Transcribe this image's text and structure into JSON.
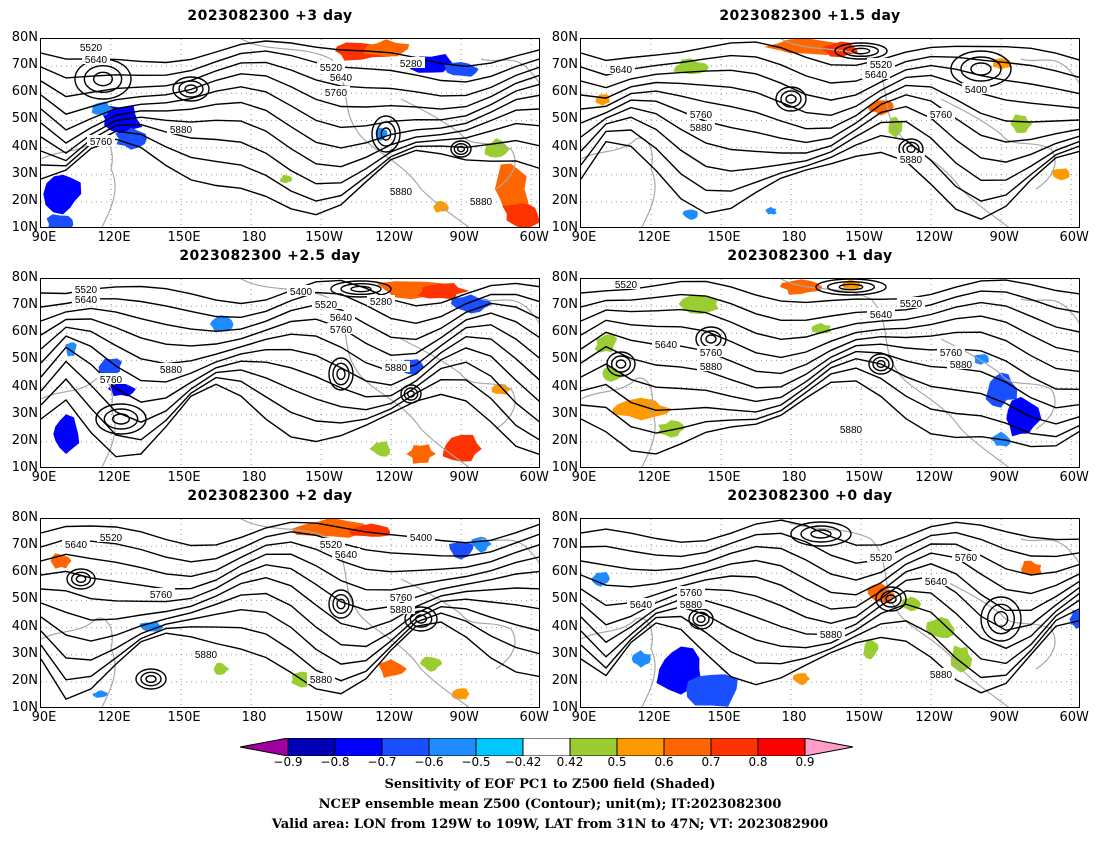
{
  "panels": [
    {
      "title": "2023082300 +3 day",
      "contour_labels": [
        "5520",
        "5640",
        "5520",
        "5280",
        "5640",
        "5760",
        "5760",
        "5880",
        "5880",
        "5880"
      ]
    },
    {
      "title": "2023082300 +1.5 day",
      "contour_labels": [
        "5640",
        "5520",
        "5640",
        "5400",
        "5760",
        "5880",
        "5760",
        "5880"
      ]
    },
    {
      "title": "2023082300 +2.5 day",
      "contour_labels": [
        "5520",
        "5640",
        "5400",
        "5520",
        "5280",
        "5640",
        "5760",
        "5760",
        "5880",
        "5880"
      ]
    },
    {
      "title": "2023082300 +1 day",
      "contour_labels": [
        "5520",
        "5520",
        "5640",
        "5640",
        "5760",
        "5880",
        "5760",
        "5880",
        "5880"
      ]
    },
    {
      "title": "2023082300 +2 day",
      "contour_labels": [
        "5640",
        "5520",
        "5520",
        "5640",
        "5400",
        "5760",
        "5760",
        "5880",
        "5880",
        "5880"
      ]
    },
    {
      "title": "2023082300 +0 day",
      "contour_labels": [
        "5640",
        "5520",
        "5760",
        "5640",
        "5760",
        "5880",
        "5880",
        "5880"
      ]
    }
  ],
  "lat_ticks": [
    "80N",
    "70N",
    "60N",
    "50N",
    "40N",
    "30N",
    "20N",
    "10N"
  ],
  "lon_ticks": [
    "90E",
    "120E",
    "150E",
    "180",
    "150W",
    "120W",
    "90W",
    "60W"
  ],
  "colorbar": {
    "ticks": [
      "−0.9",
      "−0.8",
      "−0.7",
      "−0.6",
      "−0.5",
      "−0.42",
      "0.42",
      "0.5",
      "0.6",
      "0.7",
      "0.8",
      "0.9"
    ],
    "colors": [
      "#a000a0",
      "#0000b4",
      "#0000ff",
      "#1a4fff",
      "#1e8cff",
      "#00c8ff",
      "#ffffff",
      "#9acd32",
      "#ff9900",
      "#ff6600",
      "#ff3300",
      "#ff0000",
      "#ff9ec8"
    ]
  },
  "captions": {
    "line1": "Sensitivity of EOF PC1 to Z500 field (Shaded)",
    "line2": "NCEP ensemble mean Z500 (Contour); unit(m); IT:2023082300",
    "line3": "Valid area: LON from 129W to 109W, LAT from 31N to 47N; VT: 2023082900"
  }
}
